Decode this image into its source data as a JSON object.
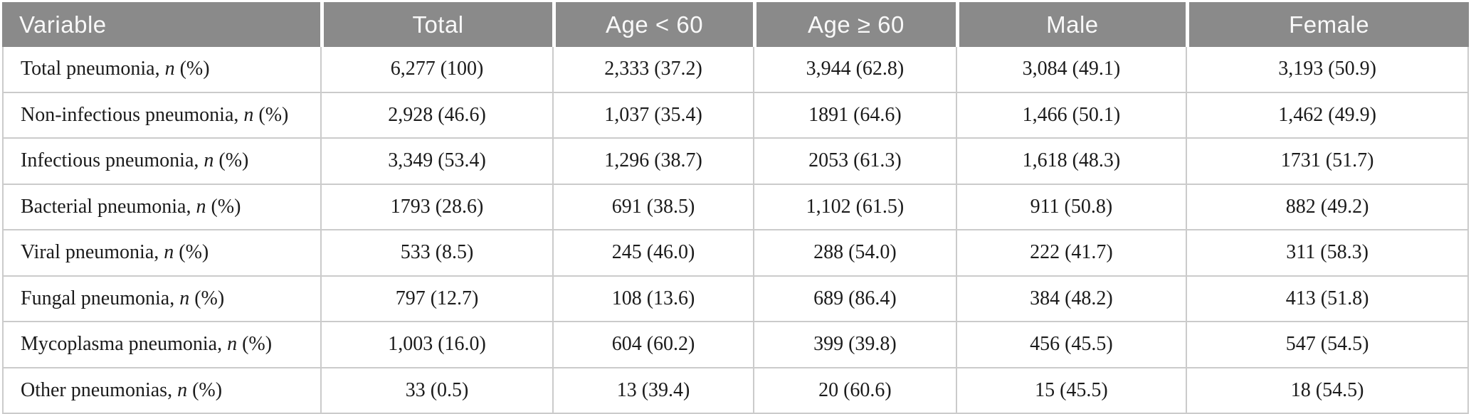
{
  "table": {
    "columns": {
      "variable": "Variable",
      "total": "Total",
      "age_lt_60": "Age < 60",
      "age_ge_60": "Age ≥ 60",
      "male": "Male",
      "female": "Female"
    },
    "row_label_suffix": {
      "comma": ", ",
      "n": "n",
      "pct": " (%)"
    },
    "rows": [
      {
        "label": "Total pneumonia",
        "total": "6,277 (100)",
        "age_lt_60": "2,333 (37.2)",
        "age_ge_60": "3,944 (62.8)",
        "male": "3,084 (49.1)",
        "female": "3,193 (50.9)"
      },
      {
        "label": "Non-infectious pneumonia",
        "total": "2,928 (46.6)",
        "age_lt_60": "1,037 (35.4)",
        "age_ge_60": "1891 (64.6)",
        "male": "1,466 (50.1)",
        "female": "1,462 (49.9)"
      },
      {
        "label": "Infectious pneumonia",
        "total": "3,349 (53.4)",
        "age_lt_60": "1,296 (38.7)",
        "age_ge_60": "2053 (61.3)",
        "male": "1,618 (48.3)",
        "female": "1731 (51.7)"
      },
      {
        "label": "Bacterial pneumonia",
        "total": "1793 (28.6)",
        "age_lt_60": "691 (38.5)",
        "age_ge_60": "1,102 (61.5)",
        "male": "911 (50.8)",
        "female": "882 (49.2)"
      },
      {
        "label": "Viral pneumonia",
        "total": "533 (8.5)",
        "age_lt_60": "245 (46.0)",
        "age_ge_60": "288 (54.0)",
        "male": "222 (41.7)",
        "female": "311 (58.3)"
      },
      {
        "label": "Fungal pneumonia",
        "total": "797 (12.7)",
        "age_lt_60": "108 (13.6)",
        "age_ge_60": "689 (86.4)",
        "male": "384 (48.2)",
        "female": "413 (51.8)"
      },
      {
        "label": "Mycoplasma pneumonia",
        "total": "1,003 (16.0)",
        "age_lt_60": "604 (60.2)",
        "age_ge_60": "399 (39.8)",
        "male": "456 (45.5)",
        "female": "547 (54.5)"
      },
      {
        "label": "Other pneumonias",
        "total": "33 (0.5)",
        "age_lt_60": "13 (39.4)",
        "age_ge_60": "20 (60.6)",
        "male": "15 (45.5)",
        "female": "18 (54.5)"
      }
    ],
    "colors": {
      "header_bg": "#8a8a8a",
      "header_text": "#f9f9f9",
      "body_text": "#1b1b1b",
      "border": "#cbcbcb"
    }
  }
}
